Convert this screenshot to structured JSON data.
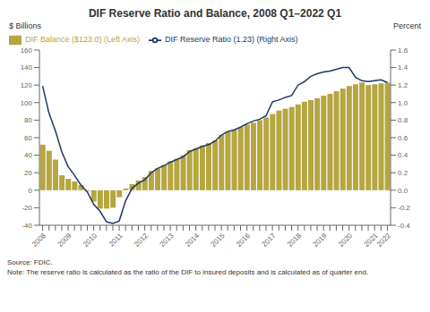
{
  "chart_data": {
    "type": "bar",
    "title": "DIF Reserve Ratio and Balance, 2008 Q1–2022 Q1",
    "ylabel": "$ Billions",
    "y2label": "Percent",
    "annotations": [
      "Source: FDIC.",
      "Note: The reserve ratio is calculated as the ratio of the DIF to insured deposits and is calculated as of quarter end."
    ],
    "categories": [
      "2008",
      null,
      null,
      null,
      "2009",
      null,
      null,
      null,
      "2010",
      null,
      null,
      null,
      "2011",
      null,
      null,
      null,
      "2012",
      null,
      null,
      null,
      "2013",
      null,
      null,
      null,
      "2014",
      null,
      null,
      null,
      "2015",
      null,
      null,
      null,
      "2016",
      null,
      null,
      null,
      "2017",
      null,
      null,
      null,
      "2018",
      null,
      null,
      null,
      "2019",
      null,
      null,
      null,
      "2020",
      null,
      null,
      null,
      "2021",
      null,
      "2022"
    ],
    "series": [
      {
        "name": "DIF Balance ($123.0) (Left Axis)",
        "type": "bar",
        "color": "#b5a642",
        "values": [
          52,
          45,
          35,
          17,
          13,
          10,
          6,
          -1,
          -13,
          -21,
          -21,
          -20,
          -8,
          2,
          7,
          11,
          15,
          22,
          25,
          29,
          33,
          36,
          40,
          46,
          48,
          51,
          54,
          57,
          63,
          67,
          69,
          72,
          75,
          77,
          80,
          83,
          87,
          91,
          93,
          95,
          98,
          101,
          103,
          105,
          108,
          110,
          113,
          116,
          119,
          121,
          123,
          120,
          121,
          122,
          123
        ]
      },
      {
        "name": "DIF Reserve Ratio (1.23) (Right Axis)",
        "type": "line",
        "axis": "y2",
        "color": "#1f3864",
        "values": [
          1.19,
          0.88,
          0.68,
          0.44,
          0.27,
          0.17,
          0.06,
          -0.02,
          -0.16,
          -0.24,
          -0.36,
          -0.38,
          -0.35,
          -0.12,
          0.02,
          0.08,
          0.12,
          0.2,
          0.25,
          0.28,
          0.32,
          0.35,
          0.38,
          0.44,
          0.47,
          0.5,
          0.52,
          0.56,
          0.63,
          0.67,
          0.69,
          0.72,
          0.76,
          0.79,
          0.81,
          0.85,
          1.01,
          1.03,
          1.06,
          1.08,
          1.2,
          1.24,
          1.3,
          1.33,
          1.35,
          1.36,
          1.38,
          1.4,
          1.4,
          1.29,
          1.25,
          1.24,
          1.25,
          1.26,
          1.23
        ]
      }
    ],
    "ylim": [
      -40,
      160
    ],
    "yticks": [
      -40,
      -20,
      0,
      20,
      40,
      60,
      80,
      100,
      120,
      140,
      160
    ],
    "y2lim": [
      -0.4,
      1.6
    ],
    "y2ticks": [
      -0.4,
      -0.2,
      {
        "value": 0,
        "label": "0.0"
      },
      0.2,
      0.4,
      0.6,
      0.8,
      {
        "value": 1,
        "label": "1.0"
      },
      1.2,
      1.4,
      1.6
    ],
    "legend": "upper left"
  }
}
